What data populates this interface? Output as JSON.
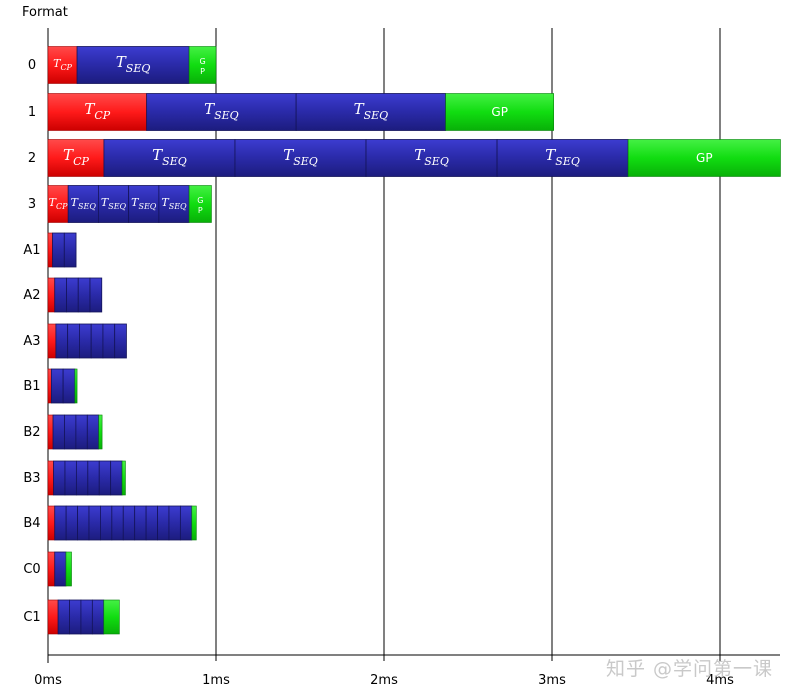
{
  "chart_data": {
    "type": "bar",
    "ylabel": "Format",
    "xlim": [
      0,
      4.4
    ],
    "x_ticks": [
      {
        "value": 0,
        "label": "0ms"
      },
      {
        "value": 1,
        "label": "1ms"
      },
      {
        "value": 2,
        "label": "2ms"
      },
      {
        "value": 3,
        "label": "3ms"
      },
      {
        "value": 4,
        "label": "4ms"
      }
    ],
    "grid": true,
    "colors": {
      "CP": "#ff1a1a",
      "SEQ": "#2a2aa8",
      "GP": "#11dd11",
      "axis": "#000000",
      "grid": "#000000"
    },
    "rows": [
      {
        "label": "0",
        "cp": 0.173,
        "seq_count": 1,
        "seq": 0.667,
        "gp": 0.16
      },
      {
        "label": "1",
        "cp": 0.587,
        "seq_count": 2,
        "seq": 0.89,
        "gp": 0.643
      },
      {
        "label": "2",
        "cp": 0.333,
        "seq_count": 4,
        "seq": 0.78,
        "gp": 0.907
      },
      {
        "label": "3",
        "cp": 0.12,
        "seq_count": 4,
        "seq": 0.18,
        "gp": 0.133
      },
      {
        "label": "A1",
        "cp": 0.027,
        "seq_count": 2,
        "seq": 0.07,
        "gp": 0
      },
      {
        "label": "A2",
        "cp": 0.04,
        "seq_count": 4,
        "seq": 0.07,
        "gp": 0
      },
      {
        "label": "A3",
        "cp": 0.047,
        "seq_count": 6,
        "seq": 0.07,
        "gp": 0
      },
      {
        "label": "B1",
        "cp": 0.02,
        "seq_count": 2,
        "seq": 0.07,
        "gp": 0.013
      },
      {
        "label": "B2",
        "cp": 0.03,
        "seq_count": 4,
        "seq": 0.068,
        "gp": 0.02
      },
      {
        "label": "B3",
        "cp": 0.033,
        "seq_count": 6,
        "seq": 0.068,
        "gp": 0.02
      },
      {
        "label": "B4",
        "cp": 0.04,
        "seq_count": 12,
        "seq": 0.068,
        "gp": 0.027
      },
      {
        "label": "C0",
        "cp": 0.04,
        "seq_count": 1,
        "seq": 0.067,
        "gp": 0.033
      },
      {
        "label": "C1",
        "cp": 0.06,
        "seq_count": 4,
        "seq": 0.068,
        "gp": 0.093
      }
    ],
    "segment_labels": {
      "cp_main": "T",
      "cp_sub": "CP",
      "seq_main": "T",
      "seq_sub": "SEQ",
      "gp": "GP",
      "gp_stacked": [
        "G",
        "P"
      ]
    }
  },
  "watermark": "知乎 @学问第一课"
}
